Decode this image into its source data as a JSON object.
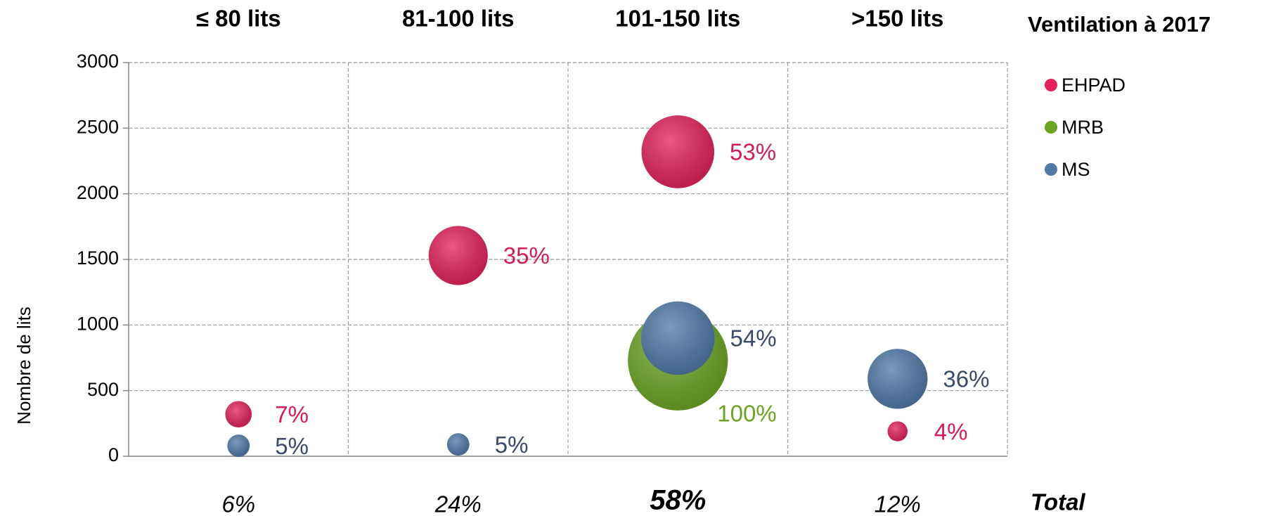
{
  "chart_data": {
    "type": "bubble",
    "categories": [
      "≤ 80 lits",
      "81-100 lits",
      "101-150 lits",
      ">150 lits"
    ],
    "series": [
      {
        "name": "EHPAD",
        "color": "#e3215c",
        "label_color": "#d61c58",
        "values": [
          320,
          1530,
          2320,
          190
        ],
        "sizes": [
          7,
          35,
          53,
          4
        ],
        "size_labels": [
          "7%",
          "35%",
          "53%",
          "4%"
        ]
      },
      {
        "name": "MRB",
        "color": "#6ba523",
        "label_color": "#6ba523",
        "values": [
          null,
          null,
          730,
          null
        ],
        "sizes": [
          null,
          null,
          100,
          null
        ],
        "size_labels": [
          null,
          null,
          "100%",
          null
        ]
      },
      {
        "name": "MS",
        "color": "#5079a8",
        "label_color": "#3b4a6b",
        "values": [
          80,
          90,
          900,
          590
        ],
        "sizes": [
          5,
          5,
          54,
          36
        ],
        "size_labels": [
          "5%",
          "5%",
          "54%",
          "36%"
        ]
      }
    ],
    "ylabel": "Nombre de lits",
    "ylim": [
      0,
      3000
    ],
    "yticks": [
      0,
      500,
      1000,
      1500,
      2000,
      2500,
      3000
    ],
    "grid": true,
    "legend_title": "Ventilation à 2017",
    "legend": "right",
    "totals": [
      "6%",
      "24%",
      "58%",
      "12%"
    ],
    "totals_title": "Total"
  }
}
